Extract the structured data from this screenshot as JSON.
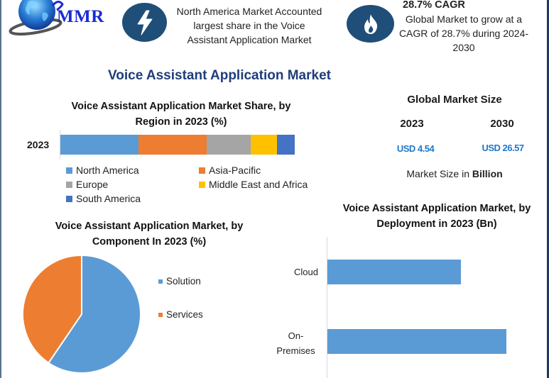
{
  "header": {
    "logo_text": "MMR",
    "highlight_1": {
      "icon": "lightning-bolt-icon",
      "lines": [
        "North America Market Accounted",
        "largest share in the Voice",
        "Assistant Application Market"
      ]
    },
    "highlight_2": {
      "icon": "flame-icon",
      "title": "28.7% CAGR",
      "lines": [
        "Global Market to grow at a",
        "CAGR of 28.7% during 2024-",
        "2030"
      ]
    }
  },
  "main_title": "Voice Assistant Application Market",
  "global_market_size": {
    "title": "Global Market Size",
    "years": [
      {
        "year": "2023",
        "value": "USD 4.54"
      },
      {
        "year": "2030",
        "value": "USD 26.57"
      }
    ],
    "note_prefix": "Market Size in ",
    "note_bold": "Billion"
  },
  "colors": {
    "navy": "#1f4e79",
    "blue": "#5b9bd5",
    "orange": "#ed7d31",
    "gray": "#a5a5a5",
    "yellow": "#ffc000",
    "dark_blue": "#4472c4",
    "value_blue": "#1f78c8"
  },
  "chart_data": [
    {
      "type": "bar",
      "orientation": "horizontal-stacked-100",
      "title": "Voice Assistant Application Market Share, by Region in 2023 (%)",
      "title_lines": [
        "Voice Assistant Application Market Share, by",
        "Region in 2023 (%)"
      ],
      "categories": [
        "2023"
      ],
      "series": [
        {
          "name": "North America",
          "values": [
            33.3
          ],
          "color": "#5b9bd5"
        },
        {
          "name": "Asia-Pacific",
          "values": [
            29.1
          ],
          "color": "#ed7d31"
        },
        {
          "name": "Europe",
          "values": [
            18.8
          ],
          "color": "#a5a5a5"
        },
        {
          "name": "Middle East and Africa",
          "values": [
            11.2
          ],
          "color": "#ffc000"
        },
        {
          "name": "South America",
          "values": [
            7.6
          ],
          "color": "#4472c4"
        }
      ],
      "xlabel": "",
      "ylabel": "",
      "legend_position": "bottom",
      "grid": false
    },
    {
      "type": "pie",
      "title": "Voice Assistant Application Market, by Component In 2023 (%)",
      "title_lines": [
        "Voice Assistant Application Market, by",
        "Component In 2023 (%)"
      ],
      "categories": [
        "Solution",
        "Services"
      ],
      "values": [
        59.5,
        40.5
      ],
      "colors": [
        "#5b9bd5",
        "#ed7d31"
      ],
      "legend_position": "right"
    },
    {
      "type": "bar",
      "orientation": "horizontal",
      "title": "Voice Assistant Application Market, by Deployment in 2023 (Bn)",
      "title_lines": [
        "Voice Assistant Application Market, by",
        "Deployment in 2023 (Bn)"
      ],
      "categories": [
        "Cloud",
        "On-Premises"
      ],
      "category_label_lines": [
        [
          "Cloud"
        ],
        [
          "On-",
          "Premises"
        ]
      ],
      "values": [
        1.94,
        2.6
      ],
      "color": "#5b9bd5",
      "xlabel": "",
      "ylabel": "",
      "grid": false
    }
  ]
}
